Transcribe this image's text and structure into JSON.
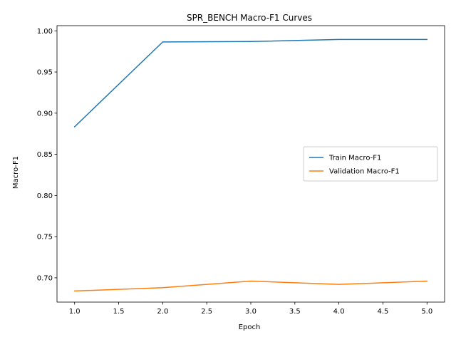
{
  "chart_data": {
    "type": "line",
    "title": "SPR_BENCH Macro-F1 Curves",
    "xlabel": "Epoch",
    "ylabel": "Macro-F1",
    "x": [
      1,
      2,
      3,
      4,
      5
    ],
    "xlim": [
      0.8,
      5.2
    ],
    "ylim": [
      0.6705,
      1.0063
    ],
    "xticks": [
      "1.0",
      "1.5",
      "2.0",
      "2.5",
      "3.0",
      "3.5",
      "4.0",
      "4.5",
      "5.0"
    ],
    "yticks": [
      "0.70",
      "0.75",
      "0.80",
      "0.85",
      "0.90",
      "0.95",
      "1.00"
    ],
    "grid": false,
    "legend_position": "center-right",
    "series": [
      {
        "name": "Train Macro-F1",
        "color": "#1f77b4",
        "values": [
          0.8835,
          0.9865,
          0.987,
          0.9895,
          0.9895
        ]
      },
      {
        "name": "Validation Macro-F1",
        "color": "#ff7f0e",
        "values": [
          0.684,
          0.688,
          0.696,
          0.692,
          0.696
        ]
      }
    ]
  }
}
